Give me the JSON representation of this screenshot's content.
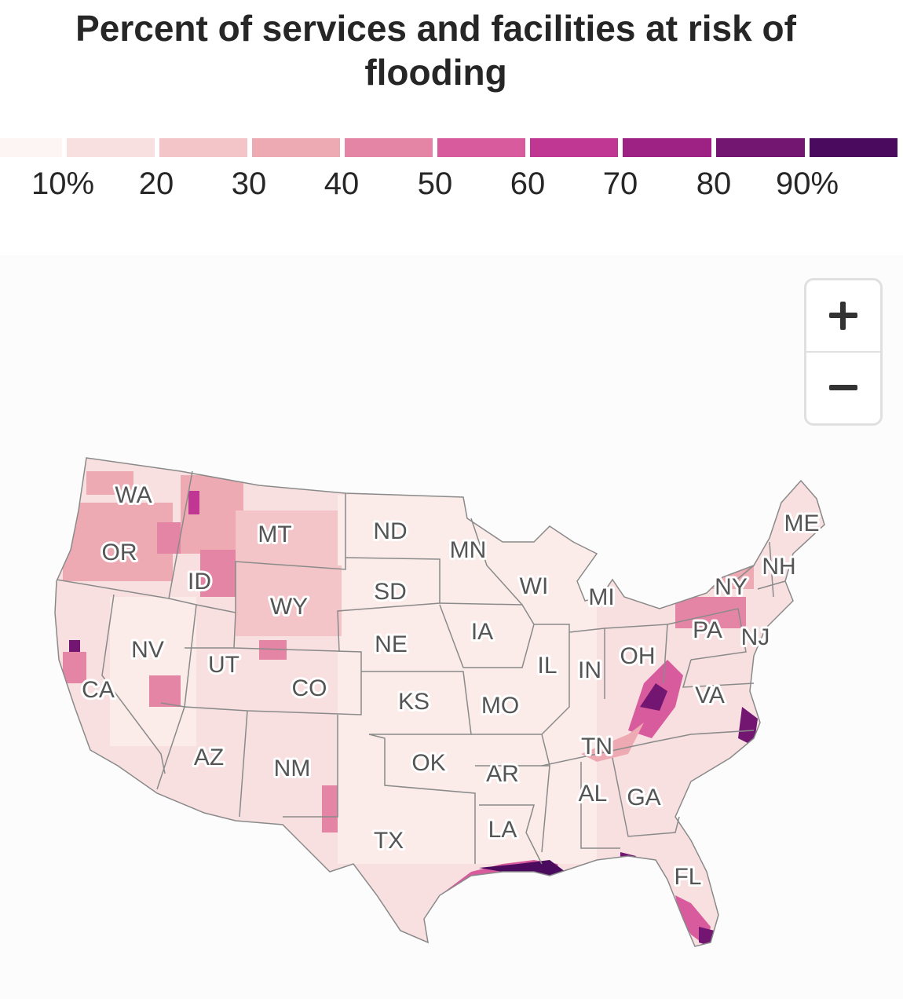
{
  "title": "Percent of services and facilities at risk of flooding",
  "legend": {
    "colors": [
      "#fdf5f3",
      "#f8e0e1",
      "#f4c5c8",
      "#eeaab3",
      "#e585a5",
      "#d85c9d",
      "#bf3792",
      "#9e2184",
      "#731672",
      "#4a0a5e"
    ],
    "labels": [
      "10%",
      "20",
      "30",
      "40",
      "50",
      "60",
      "70",
      "80",
      "90%"
    ]
  },
  "map": {
    "state_labels": {
      "WA": "WA",
      "OR": "OR",
      "CA": "CA",
      "NV": "NV",
      "ID": "ID",
      "MT": "MT",
      "WY": "WY",
      "UT": "UT",
      "AZ": "AZ",
      "CO": "CO",
      "NM": "NM",
      "ND": "ND",
      "SD": "SD",
      "NE": "NE",
      "KS": "KS",
      "OK": "OK",
      "TX": "TX",
      "MN": "MN",
      "IA": "IA",
      "MO": "MO",
      "AR": "AR",
      "LA": "LA",
      "WI": "WI",
      "IL": "IL",
      "MI": "MI",
      "IN": "IN",
      "OH": "OH",
      "TN": "TN",
      "AL": "AL",
      "GA": "GA",
      "FL": "FL",
      "VA": "VA",
      "PA": "PA",
      "NY": "NY",
      "NJ": "NJ",
      "NH": "NH",
      "ME": "ME"
    }
  },
  "zoom": {
    "in_icon": "plus-icon",
    "out_icon": "minus-icon"
  }
}
